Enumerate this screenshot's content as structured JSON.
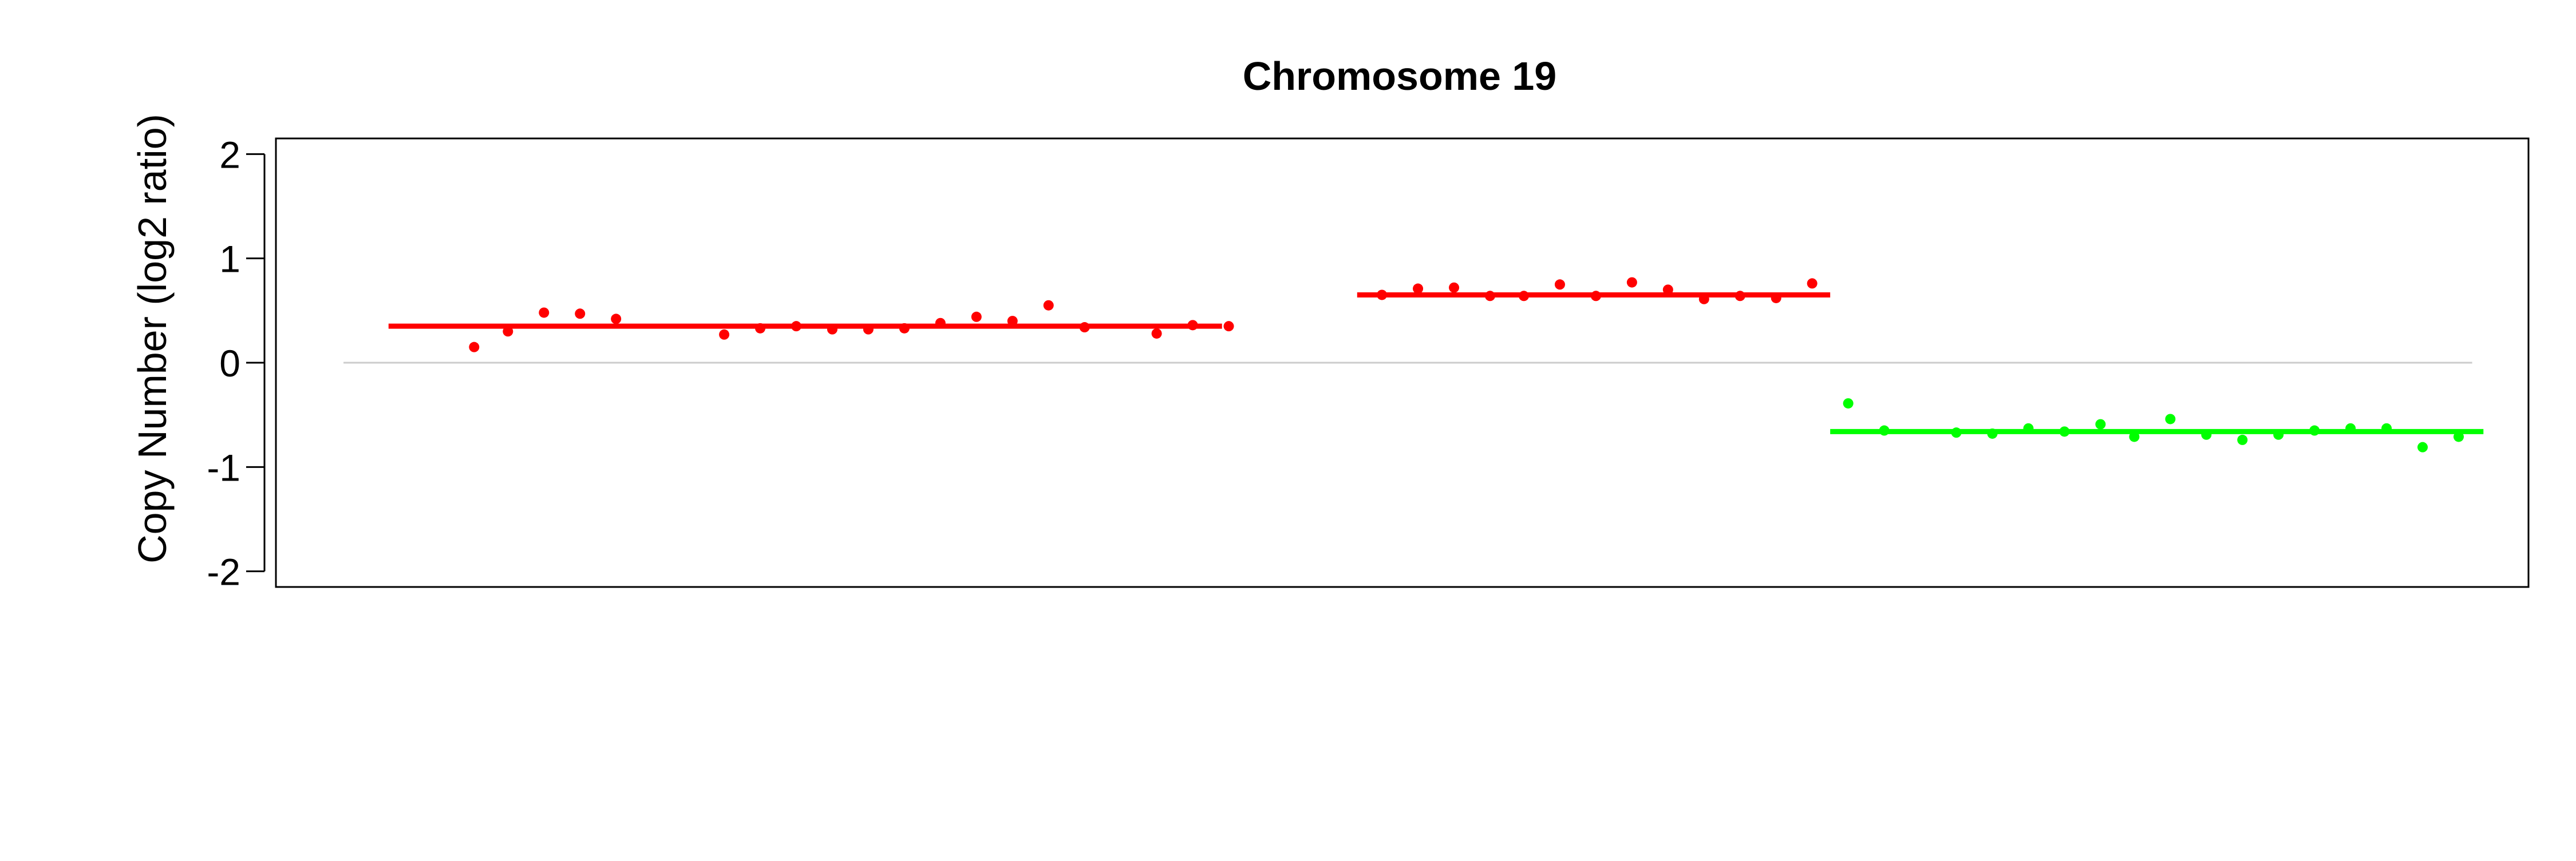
{
  "chart_data": {
    "type": "scatter",
    "title": "Chromosome 19",
    "xlabel": "",
    "ylabel": "Copy Number (log2 ratio)",
    "ylim": [
      -2.15,
      2.15
    ],
    "xlim": [
      0,
      100
    ],
    "yticks": [
      "2",
      "1",
      "0",
      "-1",
      "-2"
    ],
    "ytick_values": [
      2,
      1,
      0,
      -1,
      -2
    ],
    "grid": false,
    "reference_line": {
      "y": 0,
      "color": "#cccccc"
    },
    "colors": {
      "gain": "#ff0000",
      "loss": "#00ff00",
      "axis": "#000000"
    },
    "series": [
      {
        "color": "#ff0000",
        "segment": {
          "x_start": 5,
          "x_end": 42,
          "value": 0.35
        },
        "points": [
          {
            "x": 8.8,
            "y": 0.15
          },
          {
            "x": 10.3,
            "y": 0.3
          },
          {
            "x": 11.9,
            "y": 0.48
          },
          {
            "x": 13.5,
            "y": 0.47
          },
          {
            "x": 15.1,
            "y": 0.42
          },
          {
            "x": 19.9,
            "y": 0.27
          },
          {
            "x": 21.5,
            "y": 0.33
          },
          {
            "x": 23.1,
            "y": 0.35
          },
          {
            "x": 24.7,
            "y": 0.32
          },
          {
            "x": 26.3,
            "y": 0.32
          },
          {
            "x": 27.9,
            "y": 0.33
          },
          {
            "x": 29.5,
            "y": 0.38
          },
          {
            "x": 31.1,
            "y": 0.44
          },
          {
            "x": 32.7,
            "y": 0.4
          },
          {
            "x": 34.3,
            "y": 0.55
          },
          {
            "x": 35.9,
            "y": 0.34
          },
          {
            "x": 39.1,
            "y": 0.28
          },
          {
            "x": 40.7,
            "y": 0.36
          },
          {
            "x": 42.3,
            "y": 0.35
          }
        ]
      },
      {
        "color": "#ff0000",
        "segment": {
          "x_start": 48,
          "x_end": 69,
          "value": 0.65
        },
        "points": [
          {
            "x": 49.1,
            "y": 0.65
          },
          {
            "x": 50.7,
            "y": 0.71
          },
          {
            "x": 52.3,
            "y": 0.72
          },
          {
            "x": 53.9,
            "y": 0.64
          },
          {
            "x": 55.4,
            "y": 0.64
          },
          {
            "x": 57.0,
            "y": 0.75
          },
          {
            "x": 58.6,
            "y": 0.64
          },
          {
            "x": 60.2,
            "y": 0.77
          },
          {
            "x": 61.8,
            "y": 0.7
          },
          {
            "x": 63.4,
            "y": 0.61
          },
          {
            "x": 65.0,
            "y": 0.64
          },
          {
            "x": 66.6,
            "y": 0.62
          },
          {
            "x": 68.2,
            "y": 0.76
          }
        ]
      },
      {
        "color": "#00ff00",
        "segment": {
          "x_start": 69,
          "x_end": 98,
          "value": -0.66
        },
        "points": [
          {
            "x": 69.8,
            "y": -0.39
          },
          {
            "x": 71.4,
            "y": -0.65
          },
          {
            "x": 74.6,
            "y": -0.67
          },
          {
            "x": 76.2,
            "y": -0.68
          },
          {
            "x": 77.8,
            "y": -0.63
          },
          {
            "x": 79.4,
            "y": -0.66
          },
          {
            "x": 81.0,
            "y": -0.59
          },
          {
            "x": 82.5,
            "y": -0.71
          },
          {
            "x": 84.1,
            "y": -0.54
          },
          {
            "x": 85.7,
            "y": -0.69
          },
          {
            "x": 87.3,
            "y": -0.74
          },
          {
            "x": 88.9,
            "y": -0.69
          },
          {
            "x": 90.5,
            "y": -0.65
          },
          {
            "x": 92.1,
            "y": -0.63
          },
          {
            "x": 93.7,
            "y": -0.63
          },
          {
            "x": 95.3,
            "y": -0.81
          },
          {
            "x": 96.9,
            "y": -0.71
          }
        ]
      }
    ]
  }
}
